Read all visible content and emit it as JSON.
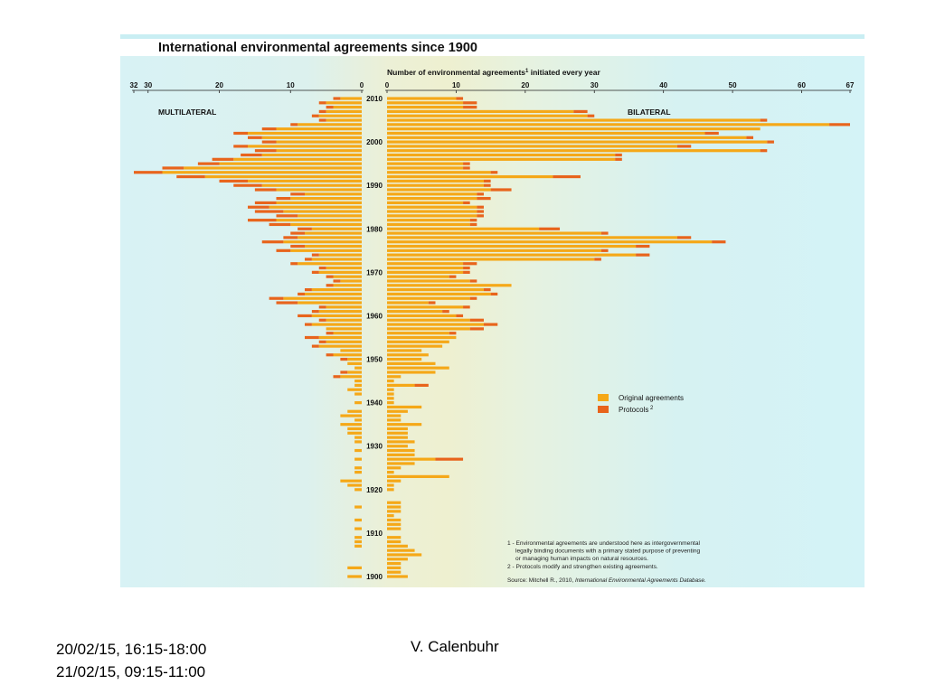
{
  "slide": {
    "dates_line1": "20/02/15, 16:15-18:00",
    "dates_line2": "21/02/15, 09:15-11:00",
    "author": "V. Calenbuhr"
  },
  "chart_data": {
    "type": "bar",
    "orientation": "horizontal",
    "layout": "butterfly",
    "title": "International environmental agreements since 1900",
    "subtitle": "Number of environmental agreements",
    "subtitle_sup": "1",
    "subtitle_tail": " initiated every year",
    "left_panel_label": "MULTILATERAL",
    "right_panel_label": "BILATERAL",
    "left_axis": {
      "range": [
        0,
        32
      ],
      "ticks": [
        "32",
        "30",
        "20",
        "10",
        "0"
      ],
      "tick_values": [
        32,
        30,
        20,
        10,
        0
      ]
    },
    "right_axis": {
      "range": [
        0,
        67
      ],
      "ticks": [
        "0",
        "10",
        "20",
        "30",
        "40",
        "50",
        "60",
        "67"
      ],
      "tick_values": [
        0,
        10,
        20,
        30,
        40,
        50,
        60,
        67
      ]
    },
    "year_labels": [
      "2010",
      "2000",
      "1990",
      "1980",
      "1970",
      "1960",
      "1950",
      "1940",
      "1930",
      "1920",
      "1910",
      "1900"
    ],
    "year_range": [
      1900,
      2010
    ],
    "legend": [
      {
        "name": "Original agreements",
        "color": "#f5a818"
      },
      {
        "name": "Protocols",
        "sup": "2",
        "color": "#e8641c"
      }
    ],
    "legend_position": "right-middle",
    "notes": [
      "1 - Environmental agreements are understood here as intergovernmental",
      "legally binding documents with a primary stated purpose of preventing",
      "or managing human impacts on natural resources.",
      "2 - Protocols modify and strengthen existing agreements."
    ],
    "source_prefix": "Source: Mitchell R., 2010, ",
    "source_title": "International Environmental Agreements Database.",
    "series": [
      {
        "name": "Multilateral",
        "years": [
          1900,
          1901,
          1902,
          1903,
          1904,
          1905,
          1906,
          1907,
          1908,
          1909,
          1910,
          1911,
          1912,
          1913,
          1914,
          1915,
          1916,
          1917,
          1918,
          1919,
          1920,
          1921,
          1922,
          1923,
          1924,
          1925,
          1926,
          1927,
          1928,
          1929,
          1930,
          1931,
          1932,
          1933,
          1934,
          1935,
          1936,
          1937,
          1938,
          1939,
          1940,
          1941,
          1942,
          1943,
          1944,
          1945,
          1946,
          1947,
          1948,
          1949,
          1950,
          1951,
          1952,
          1953,
          1954,
          1955,
          1956,
          1957,
          1958,
          1959,
          1960,
          1961,
          1962,
          1963,
          1964,
          1965,
          1966,
          1967,
          1968,
          1969,
          1970,
          1971,
          1972,
          1973,
          1974,
          1975,
          1976,
          1977,
          1978,
          1979,
          1980,
          1981,
          1982,
          1983,
          1984,
          1985,
          1986,
          1987,
          1988,
          1989,
          1990,
          1991,
          1992,
          1993,
          1994,
          1995,
          1996,
          1997,
          1998,
          1999,
          2000,
          2001,
          2002,
          2003,
          2004,
          2005,
          2006,
          2007,
          2008,
          2009,
          2010
        ],
        "original": [
          2,
          0,
          2,
          0,
          0,
          0,
          0,
          1,
          1,
          1,
          0,
          1,
          0,
          1,
          0,
          0,
          1,
          0,
          0,
          0,
          1,
          2,
          3,
          0,
          1,
          1,
          0,
          1,
          0,
          1,
          0,
          1,
          1,
          2,
          2,
          3,
          1,
          3,
          2,
          0,
          1,
          0,
          1,
          2,
          1,
          1,
          3,
          2,
          1,
          2,
          2,
          4,
          3,
          6,
          5,
          6,
          4,
          5,
          7,
          5,
          7,
          6,
          5,
          9,
          11,
          8,
          7,
          4,
          3,
          4,
          6,
          5,
          9,
          7,
          6,
          10,
          8,
          11,
          9,
          8,
          7,
          10,
          12,
          9,
          11,
          13,
          12,
          10,
          8,
          12,
          14,
          16,
          22,
          28,
          25,
          20,
          18,
          14,
          12,
          16,
          12,
          14,
          16,
          12,
          9,
          5,
          6,
          5,
          4,
          5,
          3
        ],
        "protocols": [
          0,
          0,
          0,
          0,
          0,
          0,
          0,
          0,
          0,
          0,
          0,
          0,
          0,
          0,
          0,
          0,
          0,
          0,
          0,
          0,
          0,
          0,
          0,
          0,
          0,
          0,
          0,
          0,
          0,
          0,
          0,
          0,
          0,
          0,
          0,
          0,
          0,
          0,
          0,
          0,
          0,
          0,
          0,
          0,
          0,
          0,
          1,
          1,
          0,
          0,
          1,
          1,
          0,
          1,
          1,
          2,
          1,
          0,
          1,
          1,
          2,
          1,
          1,
          3,
          2,
          1,
          1,
          1,
          1,
          1,
          1,
          1,
          1,
          1,
          1,
          2,
          2,
          3,
          2,
          2,
          2,
          3,
          4,
          3,
          4,
          3,
          3,
          2,
          2,
          3,
          4,
          4,
          4,
          4,
          3,
          3,
          3,
          3,
          3,
          2,
          2,
          2,
          2,
          2,
          1,
          1,
          1,
          1,
          1,
          1,
          1
        ]
      },
      {
        "name": "Bilateral",
        "years": [
          1900,
          1901,
          1902,
          1903,
          1904,
          1905,
          1906,
          1907,
          1908,
          1909,
          1910,
          1911,
          1912,
          1913,
          1914,
          1915,
          1916,
          1917,
          1918,
          1919,
          1920,
          1921,
          1922,
          1923,
          1924,
          1925,
          1926,
          1927,
          1928,
          1929,
          1930,
          1931,
          1932,
          1933,
          1934,
          1935,
          1936,
          1937,
          1938,
          1939,
          1940,
          1941,
          1942,
          1943,
          1944,
          1945,
          1946,
          1947,
          1948,
          1949,
          1950,
          1951,
          1952,
          1953,
          1954,
          1955,
          1956,
          1957,
          1958,
          1959,
          1960,
          1961,
          1962,
          1963,
          1964,
          1965,
          1966,
          1967,
          1968,
          1969,
          1970,
          1971,
          1972,
          1973,
          1974,
          1975,
          1976,
          1977,
          1978,
          1979,
          1980,
          1981,
          1982,
          1983,
          1984,
          1985,
          1986,
          1987,
          1988,
          1989,
          1990,
          1991,
          1992,
          1993,
          1994,
          1995,
          1996,
          1997,
          1998,
          1999,
          2000,
          2001,
          2002,
          2003,
          2004,
          2005,
          2006,
          2007,
          2008,
          2009,
          2010
        ],
        "original": [
          3,
          2,
          2,
          2,
          3,
          5,
          4,
          3,
          2,
          2,
          0,
          2,
          2,
          2,
          1,
          2,
          2,
          2,
          0,
          0,
          1,
          1,
          2,
          9,
          1,
          2,
          4,
          7,
          4,
          4,
          3,
          4,
          3,
          3,
          3,
          5,
          2,
          2,
          3,
          5,
          1,
          1,
          1,
          1,
          4,
          1,
          2,
          7,
          9,
          7,
          5,
          6,
          5,
          8,
          9,
          10,
          9,
          12,
          14,
          12,
          10,
          8,
          11,
          6,
          12,
          15,
          14,
          18,
          12,
          9,
          11,
          11,
          11,
          30,
          36,
          31,
          36,
          47,
          42,
          31,
          22,
          12,
          12,
          13,
          13,
          13,
          11,
          13,
          13,
          15,
          14,
          14,
          24,
          15,
          11,
          11,
          33,
          33,
          54,
          42,
          55,
          52,
          46,
          54,
          64,
          54,
          29,
          27,
          11,
          11,
          10
        ],
        "protocols": [
          0,
          0,
          0,
          0,
          0,
          0,
          0,
          0,
          0,
          0,
          0,
          0,
          0,
          0,
          0,
          0,
          0,
          0,
          0,
          0,
          0,
          0,
          0,
          0,
          0,
          0,
          0,
          4,
          0,
          0,
          0,
          0,
          0,
          0,
          0,
          0,
          0,
          0,
          0,
          0,
          0,
          0,
          0,
          0,
          2,
          0,
          0,
          0,
          0,
          0,
          0,
          0,
          0,
          0,
          0,
          0,
          1,
          2,
          2,
          2,
          1,
          1,
          1,
          1,
          1,
          1,
          1,
          0,
          1,
          1,
          1,
          1,
          2,
          1,
          2,
          1,
          2,
          2,
          2,
          1,
          3,
          1,
          1,
          1,
          1,
          1,
          1,
          2,
          1,
          3,
          1,
          1,
          4,
          1,
          1,
          1,
          1,
          1,
          1,
          2,
          1,
          1,
          2,
          0,
          3,
          1,
          1,
          2,
          2,
          2,
          1
        ]
      }
    ]
  }
}
